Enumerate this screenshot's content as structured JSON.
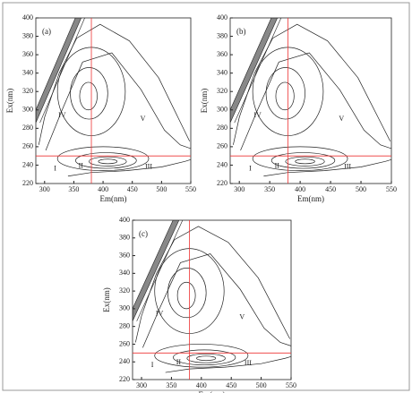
{
  "chart_data": [
    {
      "type": "contour",
      "panel_label": "(a)",
      "x_label": "Em(nm)",
      "y_label": "Ex(nm)",
      "xlim": [
        285,
        550
      ],
      "ylim": [
        220,
        400
      ],
      "xticks": [
        300,
        350,
        400,
        450,
        500,
        550
      ],
      "yticks": [
        220,
        240,
        260,
        280,
        300,
        320,
        340,
        360,
        380,
        400
      ],
      "vline": 380,
      "hline": 250,
      "regions": [
        "I",
        "II",
        "III",
        "IV",
        "V"
      ]
    },
    {
      "type": "contour",
      "panel_label": "(b)",
      "x_label": "Em(nm)",
      "y_label": "Ex(nm)",
      "xlim": [
        285,
        550
      ],
      "ylim": [
        220,
        400
      ],
      "xticks": [
        300,
        350,
        400,
        450,
        500,
        550
      ],
      "yticks": [
        220,
        240,
        260,
        280,
        300,
        320,
        340,
        360,
        380,
        400
      ],
      "vline": 380,
      "hline": 250,
      "regions": [
        "I",
        "II",
        "III",
        "IV",
        "V"
      ]
    },
    {
      "type": "contour",
      "panel_label": "(c)",
      "x_label": "Em(nm)",
      "y_label": "Ex(nm)",
      "xlim": [
        285,
        550
      ],
      "ylim": [
        220,
        400
      ],
      "xticks": [
        300,
        350,
        400,
        450,
        500,
        550
      ],
      "yticks": [
        220,
        240,
        260,
        280,
        300,
        320,
        340,
        360,
        380,
        400
      ],
      "vline": 380,
      "hline": 250,
      "regions": [
        "I",
        "II",
        "III",
        "IV",
        "V"
      ]
    }
  ]
}
